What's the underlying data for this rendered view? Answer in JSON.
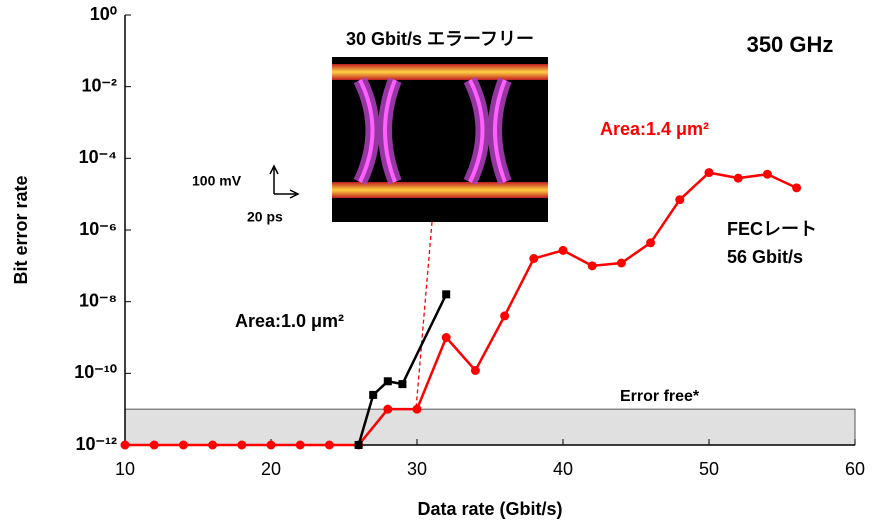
{
  "chart_data": {
    "type": "line",
    "x_label": "Data rate (Gbit/s)",
    "y_label": "Bit error rate",
    "log_y": true,
    "grid": false,
    "xlim": [
      10,
      60
    ],
    "xticks": [
      10,
      20,
      30,
      40,
      50,
      60
    ],
    "ylim": [
      1e-12,
      1
    ],
    "yticks": [
      {
        "value": 1,
        "label": "10⁰"
      },
      {
        "value": 0.01,
        "label": "10⁻²"
      },
      {
        "value": 0.0001,
        "label": "10⁻⁴"
      },
      {
        "value": 1e-06,
        "label": "10⁻⁶"
      },
      {
        "value": 1e-08,
        "label": "10⁻⁸"
      },
      {
        "value": 1e-10,
        "label": "10⁻¹⁰"
      },
      {
        "value": 1e-12,
        "label": "10⁻¹²"
      }
    ],
    "shaded_range": [
      1e-12,
      1e-11
    ],
    "series": [
      {
        "name": "Area:1.4 μm²",
        "color": "#ff0000",
        "marker": "circle",
        "x": [
          10,
          12,
          14,
          16,
          18,
          20,
          22,
          24,
          26,
          28,
          30,
          32,
          34,
          36,
          38,
          40,
          42,
          44,
          46,
          48,
          50,
          52,
          54,
          56
        ],
        "values": [
          1e-12,
          1e-12,
          1e-12,
          1e-12,
          1e-12,
          1e-12,
          1e-12,
          1e-12,
          1e-12,
          1e-11,
          1e-11,
          1e-09,
          1.2e-10,
          4e-09,
          1.6e-07,
          2.7e-07,
          1e-07,
          1.2e-07,
          4.4e-07,
          7e-06,
          4e-05,
          2.8e-05,
          3.6e-05,
          1.5e-05
        ]
      },
      {
        "name": "Area:1.0 μm²",
        "color": "#000000",
        "marker": "square",
        "x": [
          26,
          27,
          28,
          29,
          32
        ],
        "values": [
          1e-12,
          2.5e-11,
          6e-11,
          5e-11,
          1.6e-08
        ]
      }
    ],
    "annotations": {
      "eye_title": "30 Gbit/s  エラーフリー",
      "frequency": "350 GHz",
      "fec_1": "FECレート",
      "fec_2": "56 Gbit/s",
      "error_free": "Error free*",
      "scale_v": "100 mV",
      "scale_t": "20 ps"
    }
  }
}
